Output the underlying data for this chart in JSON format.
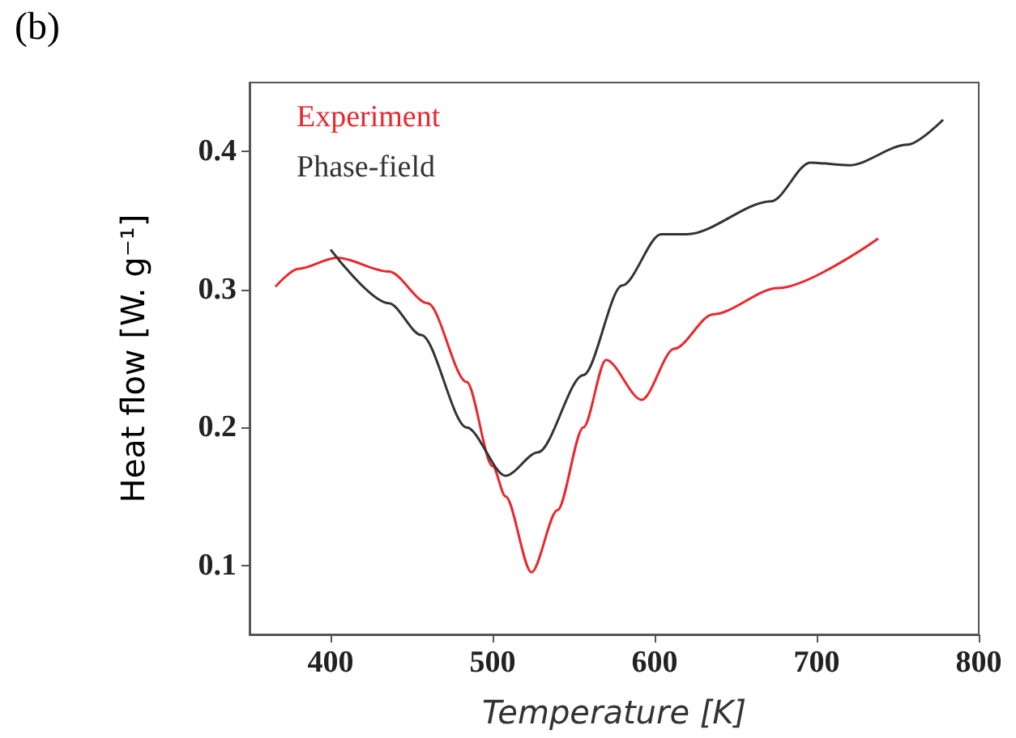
{
  "chart_data": {
    "type": "line",
    "title": "(b)",
    "xlabel": "Temperature [K]",
    "ylabel": "Heat flow [W. g⁻¹]",
    "xlim": [
      350,
      800
    ],
    "xticks": [
      400,
      500,
      600,
      700,
      800
    ],
    "ylim": [
      0.05,
      0.45
    ],
    "yticks": [
      0.1,
      0.2,
      0.3,
      0.4
    ],
    "grid": false,
    "legend": "top left",
    "marker": "none",
    "line_style": "solid",
    "series": [
      {
        "name": "Experiment",
        "color": "#e8282e",
        "x": [
          366,
          380,
          404,
          436,
          460,
          484,
          500,
          508,
          524,
          540,
          556,
          570,
          592,
          612,
          636,
          676,
          738
        ],
        "values": [
          0.302,
          0.315,
          0.323,
          0.313,
          0.29,
          0.233,
          0.172,
          0.15,
          0.095,
          0.14,
          0.2,
          0.249,
          0.22,
          0.257,
          0.282,
          0.301,
          0.337
        ]
      },
      {
        "name": "Phase-field",
        "color": "#333333",
        "x": [
          400,
          436,
          456,
          484,
          508,
          528,
          556,
          580,
          604,
          620,
          672,
          696,
          720,
          756,
          778
        ],
        "values": [
          0.329,
          0.29,
          0.267,
          0.2,
          0.165,
          0.182,
          0.238,
          0.303,
          0.34,
          0.34,
          0.364,
          0.392,
          0.39,
          0.405,
          0.423
        ]
      }
    ]
  }
}
